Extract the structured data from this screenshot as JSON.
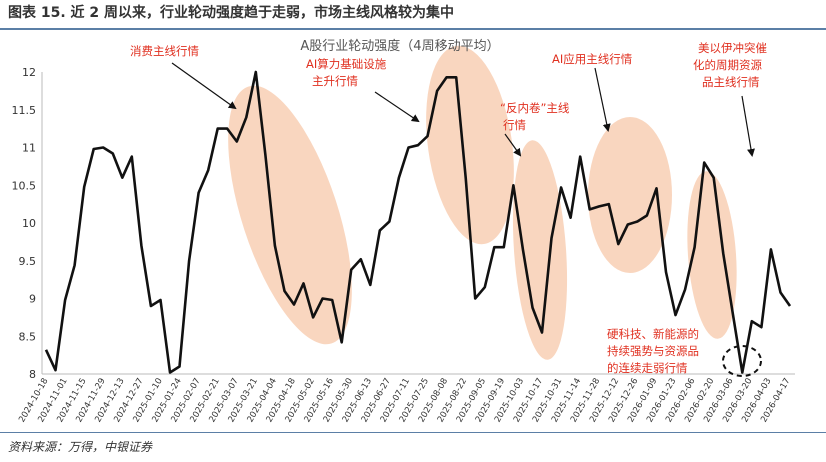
{
  "header": {
    "figure_title": "图表 15.   近 2 周以来，行业轮动强度趋于走弱，市场主线风格较为集中"
  },
  "footer": {
    "source": "资料来源：万得，中银证券"
  },
  "colors": {
    "line": "#111111",
    "highlight": "#f7c8aa",
    "annotation": "#e03020",
    "rule": "#5b7fa6"
  },
  "chart_data": {
    "type": "line",
    "title": "A股行业轮动强度（4周移动平均）",
    "xlabel": "",
    "ylabel": "",
    "ylim": [
      8,
      12
    ],
    "yticks": [
      "8",
      "8.5",
      "9",
      "9.5",
      "10",
      "10.5",
      "11",
      "11.5",
      "12"
    ],
    "grid": false,
    "x_tick_labels": [
      "2024-10-18",
      "2024-11-01",
      "2024-11-15",
      "2024-11-29",
      "2024-12-13",
      "2024-12-27",
      "2025-01-10",
      "2025-01-24",
      "2025-02-07",
      "2025-02-21",
      "2025-03-07",
      "2025-03-21",
      "2025-04-04",
      "2025-04-18",
      "2025-05-02",
      "2025-05-16",
      "2025-05-30",
      "2025-06-13",
      "2025-06-27",
      "2025-07-11",
      "2025-07-25",
      "2025-08-08",
      "2025-08-22",
      "2025-09-05",
      "2025-09-19",
      "2025-10-03",
      "2025-10-17",
      "2025-10-31",
      "2025-11-14",
      "2025-11-28",
      "2025-12-12",
      "2025-12-26",
      "2026-01-09",
      "2026-01-23",
      "2026-02-06",
      "2026-02-20",
      "2026-03-06",
      "2026-03-20",
      "2026-04-03",
      "2026-04-17"
    ],
    "series": [
      {
        "values": [
          8.32,
          8.05,
          8.98,
          9.44,
          10.48,
          10.98,
          11.0,
          10.92,
          10.6,
          10.88,
          9.7,
          8.9,
          8.98,
          8.02,
          8.1,
          9.5,
          10.4,
          10.7,
          11.25,
          11.25,
          11.08,
          11.4,
          12.0,
          10.9,
          9.7,
          9.1,
          8.92,
          9.2,
          8.75,
          9.0,
          8.98,
          8.42,
          9.38,
          9.52,
          9.18,
          9.9,
          10.02,
          10.6,
          11.0,
          11.03,
          11.15,
          11.75,
          11.93,
          11.93,
          10.6,
          9.0,
          9.15,
          9.68,
          9.68,
          10.5,
          9.65,
          8.88,
          8.55,
          9.8,
          10.47,
          10.07,
          10.88,
          10.18,
          10.22,
          10.25,
          9.72,
          9.98,
          10.02,
          10.1,
          10.46,
          9.35,
          8.78,
          9.12,
          9.68,
          10.8,
          10.6,
          9.6,
          8.8,
          8.02,
          8.7,
          8.62,
          9.65,
          9.08,
          8.9
        ]
      }
    ],
    "highlight_regions": 6,
    "annotations": [
      "消费主线行情",
      "AI算力基础设施",
      "主升行情",
      "“反内卷”主线",
      "行情",
      "AI应用主线行情",
      "美以伊冲突催",
      "化的周期资源",
      "品主线行情",
      "硬科技、新能源的",
      "持续强势与资源品",
      "的连续走弱行情"
    ]
  }
}
